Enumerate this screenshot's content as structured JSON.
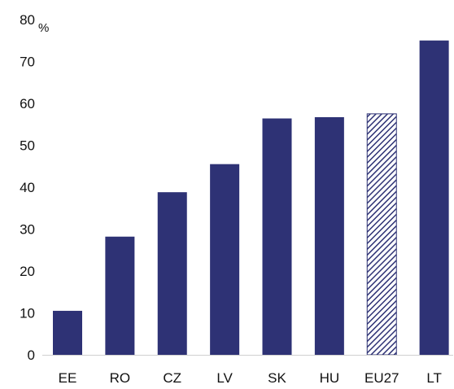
{
  "chart_data": {
    "type": "bar",
    "title": "",
    "xlabel": "",
    "ylabel": "%",
    "ylim": [
      0,
      80
    ],
    "yticks": [
      0,
      10,
      20,
      30,
      40,
      50,
      60,
      70,
      80
    ],
    "categories": [
      "EE",
      "RO",
      "CZ",
      "LV",
      "SK",
      "HU",
      "EU27",
      "LT"
    ],
    "values": [
      10.5,
      28.2,
      38.8,
      45.5,
      56.4,
      56.7,
      57.5,
      75.0
    ],
    "grid": false,
    "legend": "none",
    "colors": {
      "bar": "#2E3275",
      "highlight_bar": "#2E3275",
      "axis": "#D0D0D0"
    },
    "highlighted_categories": [
      "EU27"
    ],
    "highlight_style": "hatched"
  }
}
